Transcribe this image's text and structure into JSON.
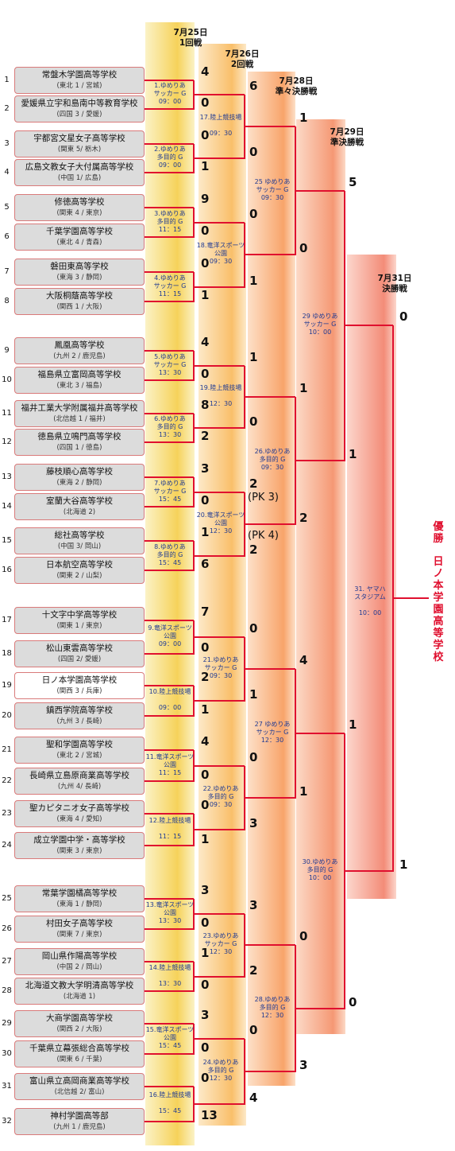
{
  "headers": [
    {
      "id": "r1",
      "date": "7月25日",
      "round": "1回戦"
    },
    {
      "id": "r2",
      "date": "7月26日",
      "round": "2回戦"
    },
    {
      "id": "qf",
      "date": "7月28日",
      "round": "準々決勝戦"
    },
    {
      "id": "sf",
      "date": "7月29日",
      "round": "準決勝戦"
    },
    {
      "id": "f",
      "date": "7月31日",
      "round": "決勝戦"
    }
  ],
  "teams": [
    {
      "n": 1,
      "name": "常盤木学園高等学校",
      "region": "(東北 1 / 宮城)"
    },
    {
      "n": 2,
      "name": "愛媛県立宇和島南中等教育学校",
      "region": "(四国 3 / 愛媛)"
    },
    {
      "n": 3,
      "name": "宇都宮文星女子高等学校",
      "region": "(関東 5/ 栃木)"
    },
    {
      "n": 4,
      "name": "広島文教女子大付属高等学校",
      "region": "(中国 1/ 広島)"
    },
    {
      "n": 5,
      "name": "修徳高等学校",
      "region": "(関東 4 / 東京)"
    },
    {
      "n": 6,
      "name": "千葉学園高等学校",
      "region": "(東北 4 / 青森)"
    },
    {
      "n": 7,
      "name": "磐田東高等学校",
      "region": "(東海 3 / 静岡)"
    },
    {
      "n": 8,
      "name": "大阪桐蔭高等学校",
      "region": "(関西 1 / 大阪)"
    },
    {
      "n": 9,
      "name": "鳳凰高等学校",
      "region": "(九州 2 / 鹿児島)"
    },
    {
      "n": 10,
      "name": "福島県立富岡高等学校",
      "region": "(東北 3 / 福島)"
    },
    {
      "n": 11,
      "name": "福井工業大学附属福井高等学校",
      "region": "(北信越 1 / 福井)"
    },
    {
      "n": 12,
      "name": "徳島県立鳴門高等学校",
      "region": "(四国 1 / 徳島)"
    },
    {
      "n": 13,
      "name": "藤枝順心高等学校",
      "region": "(東海 2 / 静岡)"
    },
    {
      "n": 14,
      "name": "室蘭大谷高等学校",
      "region": "(北海道 2)"
    },
    {
      "n": 15,
      "name": "総社高等学校",
      "region": "(中国 3/ 岡山)"
    },
    {
      "n": 16,
      "name": "日本航空高等学校",
      "region": "(関東 2 / 山梨)"
    },
    {
      "n": 17,
      "name": "十文字中学高等学校",
      "region": "(関東 1 / 東京)"
    },
    {
      "n": 18,
      "name": "松山東雲高等学校",
      "region": "(四国 2/ 愛媛)"
    },
    {
      "n": 19,
      "name": "日ノ本学園高等学校",
      "region": "(関西 3 / 兵庫)",
      "win": true
    },
    {
      "n": 20,
      "name": "鎮西学院高等学校",
      "region": "(九州 3 / 長崎)"
    },
    {
      "n": 21,
      "name": "聖和学園高等学校",
      "region": "(東北 2 / 宮城)"
    },
    {
      "n": 22,
      "name": "長崎県立島原商業高等学校",
      "region": "(九州 4/ 長崎)"
    },
    {
      "n": 23,
      "name": "聖カピタニオ女子高等学校",
      "region": "(東海 4 / 愛知)"
    },
    {
      "n": 24,
      "name": "成立学園中学・高等学校",
      "region": "(関東 3 / 東京)"
    },
    {
      "n": 25,
      "name": "常葉学園橘高等学校",
      "region": "(東海 1 / 静岡)"
    },
    {
      "n": 26,
      "name": "村田女子高等学校",
      "region": "(関東 7 / 東京)"
    },
    {
      "n": 27,
      "name": "岡山県作陽高等学校",
      "region": "(中国 2 / 岡山)"
    },
    {
      "n": 28,
      "name": "北海道文教大学明清高等学校",
      "region": "(北海道 1)"
    },
    {
      "n": 29,
      "name": "大商学園高等学校",
      "region": "(関西 2 / 大阪)"
    },
    {
      "n": 30,
      "name": "千葉県立幕張総合高等学校",
      "region": "(関東 6 / 千葉)"
    },
    {
      "n": 31,
      "name": "富山県立高岡商業高等学校",
      "region": "(北信越 2/ 富山)"
    },
    {
      "n": 32,
      "name": "神村学園高等部",
      "region": "(九州 1 / 鹿児島)"
    }
  ],
  "matches_r1": [
    {
      "info": "1.ゆめりあ\nサッカー G\n09：00",
      "s1": "4",
      "s2": "0"
    },
    {
      "info": "2.ゆめりあ\n多目的 G\n09：00",
      "s1": "0",
      "s2": "1"
    },
    {
      "info": "3.ゆめりあ\n多目的 G\n11：15",
      "s1": "9",
      "s2": "0"
    },
    {
      "info": "4.ゆめりあ\nサッカー G\n11：15",
      "s1": "0",
      "s2": "1"
    },
    {
      "info": "5.ゆめりあ\nサッカー G\n13：30",
      "s1": "4",
      "s2": "0"
    },
    {
      "info": "6.ゆめりあ\n多目的 G\n13：30",
      "s1": "8",
      "s2": "2"
    },
    {
      "info": "7.ゆめりあ\nサッカー G\n15：45",
      "s1": "3",
      "s2": "0"
    },
    {
      "info": "8.ゆめりあ\n多目的 G\n15：45",
      "s1": "1",
      "s2": "6"
    },
    {
      "info": "9.竜洋スポーツ\n公園\n09：00",
      "s1": "7",
      "s2": "0"
    },
    {
      "info": "10.陸上競技場\n\n09：00",
      "s1": "2",
      "s2": "1"
    },
    {
      "info": "11.竜洋スポーツ\n公園\n11：15",
      "s1": "4",
      "s2": "0"
    },
    {
      "info": "12.陸上競技場\n\n11：15",
      "s1": "0",
      "s2": "1"
    },
    {
      "info": "13.竜洋スポーツ\n公園\n13：30",
      "s1": "3",
      "s2": "0"
    },
    {
      "info": "14.陸上競技場\n\n13：30",
      "s1": "1",
      "s2": "0"
    },
    {
      "info": "15.竜洋スポーツ\n公園\n15：45",
      "s1": "3",
      "s2": "0"
    },
    {
      "info": "16.陸上競技場\n\n15：45",
      "s1": "0",
      "s2": "13"
    }
  ],
  "matches_r2": [
    {
      "info": "17.陸上競技場\n\n09：30",
      "s1": "6",
      "s2": "0"
    },
    {
      "info": "18.竜洋スポーツ\n公園\n09：30",
      "s1": "0",
      "s2": "1"
    },
    {
      "info": "19.陸上競技場\n\n12：30",
      "s1": "1",
      "s2": "0"
    },
    {
      "info": "20.竜洋スポーツ\n公園\n12：30",
      "s1": "2",
      "s2": "2",
      "pk1": "(PK 3)",
      "pk2": "(PK 4)"
    },
    {
      "info": "21.ゆめりあ\nサッカー G\n09：30",
      "s1": "0",
      "s2": "1"
    },
    {
      "info": "22.ゆめりあ\n多目的 G\n09：30",
      "s1": "0",
      "s2": "3"
    },
    {
      "info": "23.ゆめりあ\nサッカー G\n12：30",
      "s1": "3",
      "s2": "2"
    },
    {
      "info": "24.ゆめりあ\n多目的 G\n12：30",
      "s1": "0",
      "s2": "4"
    }
  ],
  "matches_qf": [
    {
      "info": "25 ゆめりあ\nサッカー G\n09：30",
      "s1": "1",
      "s2": "0"
    },
    {
      "info": "26.ゆめりあ\n多目的 G\n09：30",
      "s1": "1",
      "s2": "2"
    },
    {
      "info": "27 ゆめりあ\nサッカー G\n12：30",
      "s1": "4",
      "s2": "1"
    },
    {
      "info": "28.ゆめりあ\n多目的 G\n12：30",
      "s1": "0",
      "s2": "3"
    }
  ],
  "matches_sf": [
    {
      "info": "29 ゆめりあ\nサッカー G\n10：00",
      "s1": "5",
      "s2": "1"
    },
    {
      "info": "30.ゆめりあ\n多目的 G\n10：00",
      "s1": "1",
      "s2": "0"
    }
  ],
  "matches_f": [
    {
      "info": "31. ヤマハ\nスタジアム\n\n10：00",
      "s1": "0",
      "s2": "1"
    }
  ],
  "champion": {
    "label": "優勝",
    "team": "日ノ本学園高等学校"
  },
  "colors": {
    "accent": "#e0102f",
    "info": "#1f3a93",
    "team_bg": "#dcdcdc",
    "winner_bg": "#ffffff"
  }
}
